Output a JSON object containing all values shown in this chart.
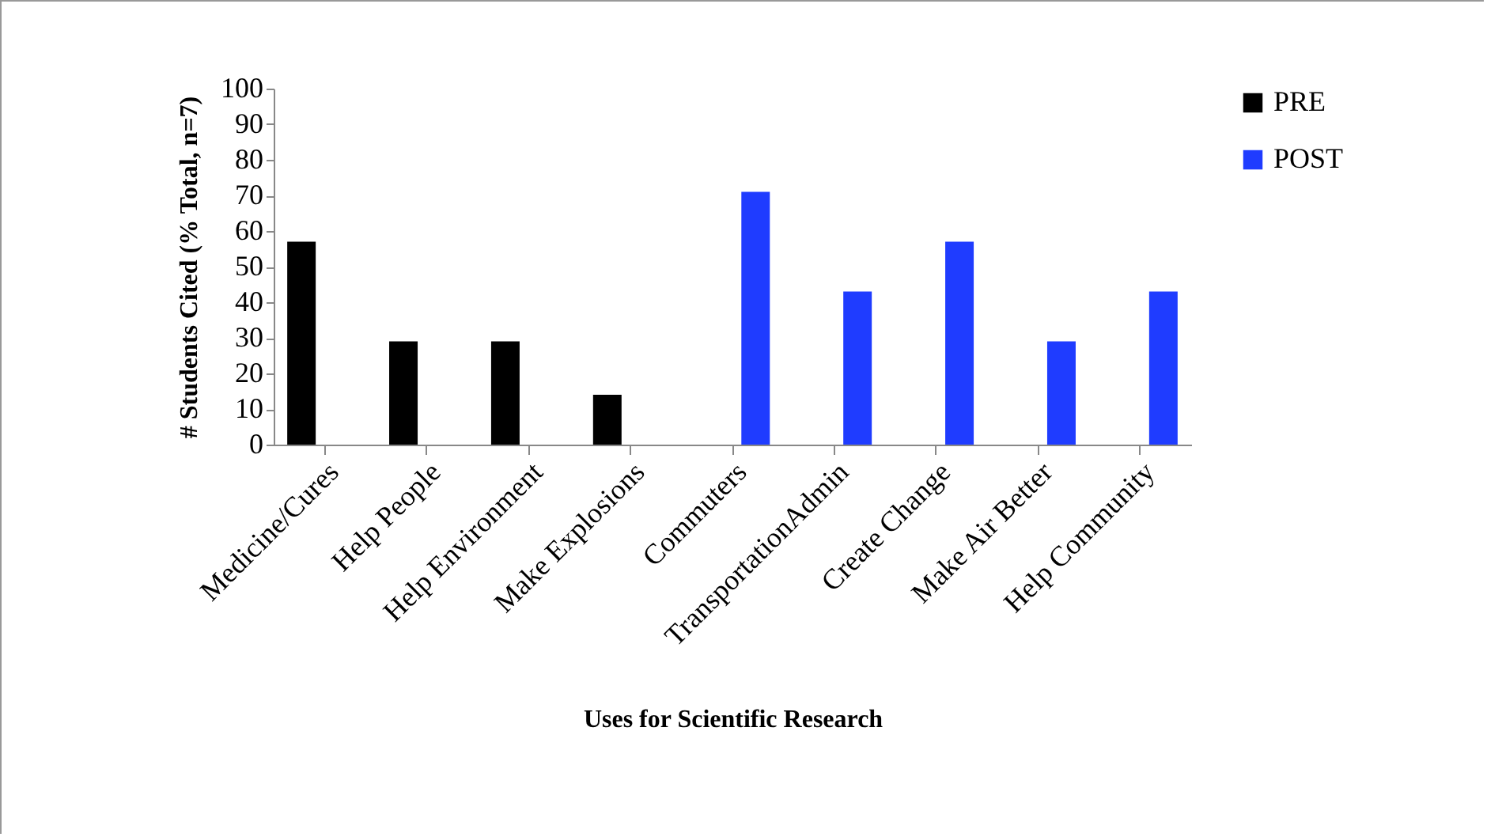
{
  "chart_data": {
    "type": "bar",
    "xlabel": "Uses for Scientific Research",
    "ylabel": "# Students Cited (% Total, n=7)",
    "categories": [
      "Medicine/Cures",
      "Help People",
      "Help Environment",
      "Make Explosions",
      "Commuters",
      "TransportationAdmin",
      "Create Change",
      "Make Air Better",
      "Help Community"
    ],
    "series": [
      {
        "name": "PRE",
        "color": "#000000",
        "values": [
          57,
          29,
          29,
          14,
          null,
          null,
          null,
          null,
          null
        ]
      },
      {
        "name": "POST",
        "color": "#1f3cff",
        "values": [
          null,
          null,
          null,
          null,
          71,
          43,
          57,
          29,
          43
        ]
      }
    ],
    "ylim": [
      0,
      100
    ],
    "yticks": [
      0,
      10,
      20,
      30,
      40,
      50,
      60,
      70,
      80,
      90,
      100
    ],
    "grid": false,
    "legend": "right"
  }
}
